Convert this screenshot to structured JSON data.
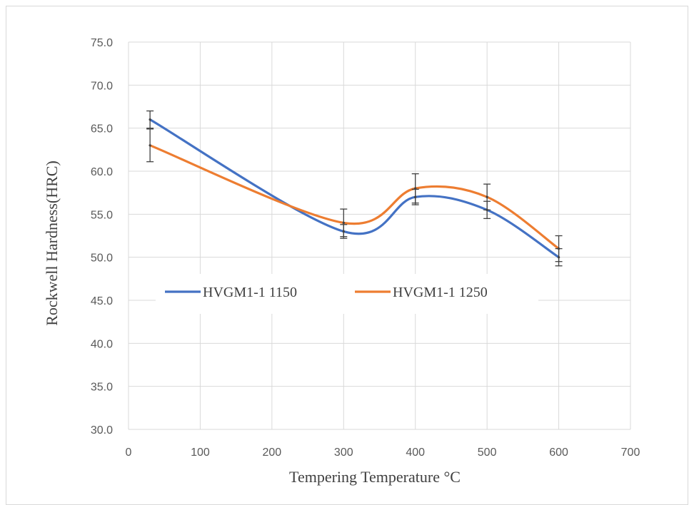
{
  "chart_data": {
    "type": "line",
    "title": "",
    "xlabel": "Tempering Temperature °C",
    "ylabel": "Rockwell Hardness(HRC)",
    "xlim": [
      0,
      700
    ],
    "ylim": [
      30,
      75
    ],
    "x_ticks": [
      0,
      100,
      200,
      300,
      400,
      500,
      600,
      700
    ],
    "y_ticks": [
      30.0,
      35.0,
      40.0,
      45.0,
      50.0,
      55.0,
      60.0,
      65.0,
      70.0,
      75.0
    ],
    "x_tick_labels": [
      "0",
      "100",
      "200",
      "300",
      "400",
      "500",
      "600",
      "700"
    ],
    "y_tick_labels": [
      "30.0",
      "35.0",
      "40.0",
      "45.0",
      "50.0",
      "55.0",
      "60.0",
      "65.0",
      "70.0",
      "75.0"
    ],
    "grid": true,
    "smooth": true,
    "legend_position": "middle-left",
    "series": [
      {
        "name": "HVGM1-1 1150",
        "color": "#4472c4",
        "x": [
          30,
          300,
          400,
          500,
          600
        ],
        "y": [
          66.0,
          53.0,
          57.0,
          55.5,
          50.0
        ],
        "error": [
          1.0,
          0.8,
          0.9,
          1.0,
          1.0
        ]
      },
      {
        "name": "HVGM1-1 1250",
        "color": "#ed7d31",
        "x": [
          30,
          300,
          400,
          500,
          600
        ],
        "y": [
          63.0,
          54.0,
          58.0,
          57.0,
          51.0
        ],
        "error": [
          1.9,
          1.6,
          1.7,
          1.5,
          1.5
        ]
      }
    ]
  }
}
